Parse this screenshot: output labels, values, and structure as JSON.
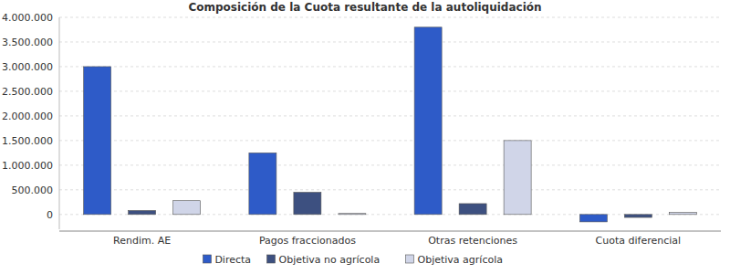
{
  "chart_data": {
    "type": "bar",
    "title": "Composición de la Cuota resultante de la autoliquidación",
    "categories": [
      "Rendim. AE",
      "Pagos fraccionados",
      "Otras retenciones",
      "Cuota diferencial"
    ],
    "series": [
      {
        "name": "Directa",
        "color": "#2e5bc8",
        "values": [
          3000000,
          1250000,
          3800000,
          -150000
        ]
      },
      {
        "name": "Objetiva no agrícola",
        "color": "#3d5080",
        "values": [
          80000,
          450000,
          220000,
          -60000
        ]
      },
      {
        "name": "Objetiva agrícola",
        "color": "#d0d5e8",
        "values": [
          280000,
          20000,
          1500000,
          40000
        ]
      }
    ],
    "ylim": [
      -300000,
      4000000
    ],
    "yticks": [
      0,
      {
        "value": 500000,
        "label": "500.000"
      },
      {
        "value": 1000000,
        "label": "1.000.000"
      },
      {
        "value": 1500000,
        "label": "1.500.000"
      },
      {
        "value": 2000000,
        "label": "2.000.000"
      },
      {
        "value": 2500000,
        "label": "2.500.000"
      },
      {
        "value": 3000000,
        "label": "3.000.000"
      },
      {
        "value": 3500000,
        "label": "3.500.000"
      },
      {
        "value": 4000000,
        "label": "4.000.000"
      }
    ],
    "grid": true,
    "legend": "bottom"
  }
}
